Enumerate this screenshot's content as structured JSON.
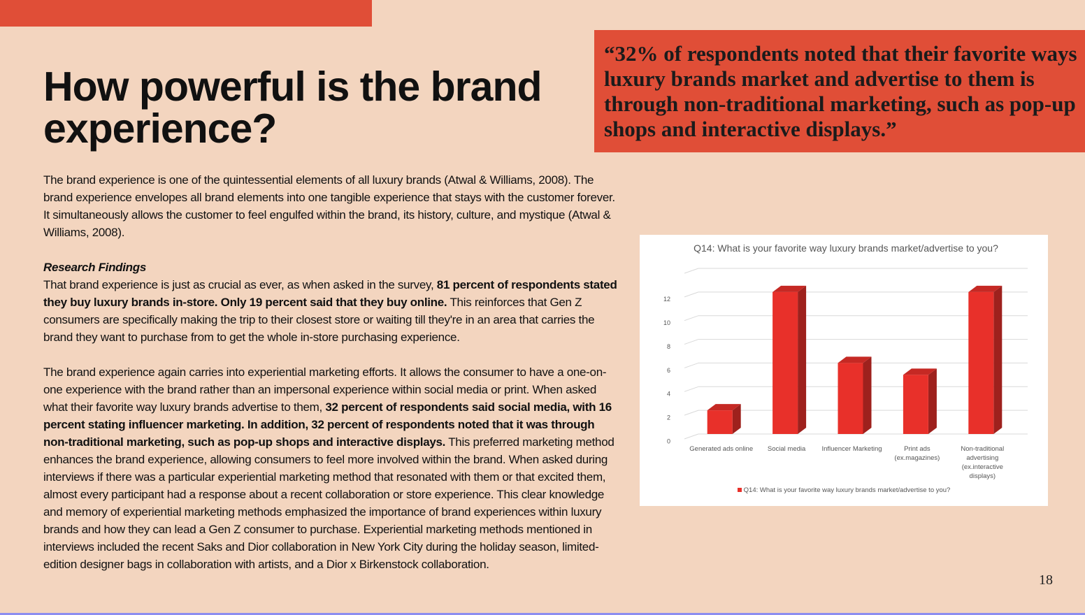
{
  "header": {
    "title": "How powerful is the brand experience?"
  },
  "quote": "“32% of respondents noted that their favorite ways luxury brands market and advertise to them is through non-traditional marketing, such as pop-up shops and interactive displays.”",
  "body": {
    "paragraphs": [
      {
        "runs": [
          {
            "text": "The brand experience is one of the quintessential elements of all luxury brands (Atwal & Williams, 2008). The brand experience envelopes all brand elements into one tangible experience that stays with the customer forever. It simultaneously allows the customer to feel engulfed within the brand, its history, culture, and mystique (Atwal & Williams, 2008).",
            "bold": false
          }
        ]
      },
      {
        "heading": "Research Findings",
        "runs": [
          {
            "text": "That brand experience is just as crucial as ever, as when asked in the survey, ",
            "bold": false
          },
          {
            "text": "81 percent of respondents stated they buy luxury brands in-store. Only 19 percent said that they buy online.",
            "bold": true
          },
          {
            "text": " This reinforces that Gen Z consumers are specifically making the trip to their closest store or waiting till they're in an area that carries the brand they want to purchase from to get the whole in-store purchasing experience.",
            "bold": false
          }
        ]
      },
      {
        "runs": [
          {
            "text": " The brand experience again carries into experiential marketing efforts. It allows the consumer to have a one-on-one experience with the brand rather than an impersonal experience within social media or print. When asked what their favorite way luxury brands advertise to them, ",
            "bold": false
          },
          {
            "text": "32 percent of respondents said social media, with 16 percent stating influencer marketing. In addition, 32 percent of respondents noted that it was through non-traditional marketing, such as pop-up shops and interactive displays.",
            "bold": true
          },
          {
            "text": " This preferred marketing method enhances the brand experience, allowing consumers to feel more involved within the brand. When asked during interviews if there was a particular experiential marketing method that resonated with them or that excited them, almost every participant had a response about a recent collaboration or store experience. This clear knowledge and memory of experiential marketing methods emphasized the importance of brand experiences within luxury brands and how they can lead a Gen Z consumer to purchase. Experiential marketing methods mentioned in interviews included the recent Saks and Dior collaboration in New York City during the holiday season, limited-edition designer bags in collaboration with artists, and a Dior x Birkenstock collaboration.",
            "bold": false
          }
        ]
      }
    ]
  },
  "page_number": "18",
  "chart_data": {
    "type": "bar",
    "title": "Q14: What is your favorite way luxury brands market/advertise to you?",
    "categories": [
      "Generated ads online",
      "Social media",
      "Influencer Marketing",
      "Print ads (ex.magazines)",
      "Non-traditional advertising (ex.interactive displays)"
    ],
    "series": [
      {
        "name": "Q14: What is your favorite way luxury brands market/advertise to you?",
        "color": "#e8302a",
        "values": [
          2,
          12,
          6,
          5,
          12
        ]
      }
    ],
    "ylim": [
      0,
      14
    ],
    "yticks": [
      0,
      2,
      4,
      6,
      8,
      10,
      12
    ],
    "grid": true,
    "legend": "bottom"
  }
}
